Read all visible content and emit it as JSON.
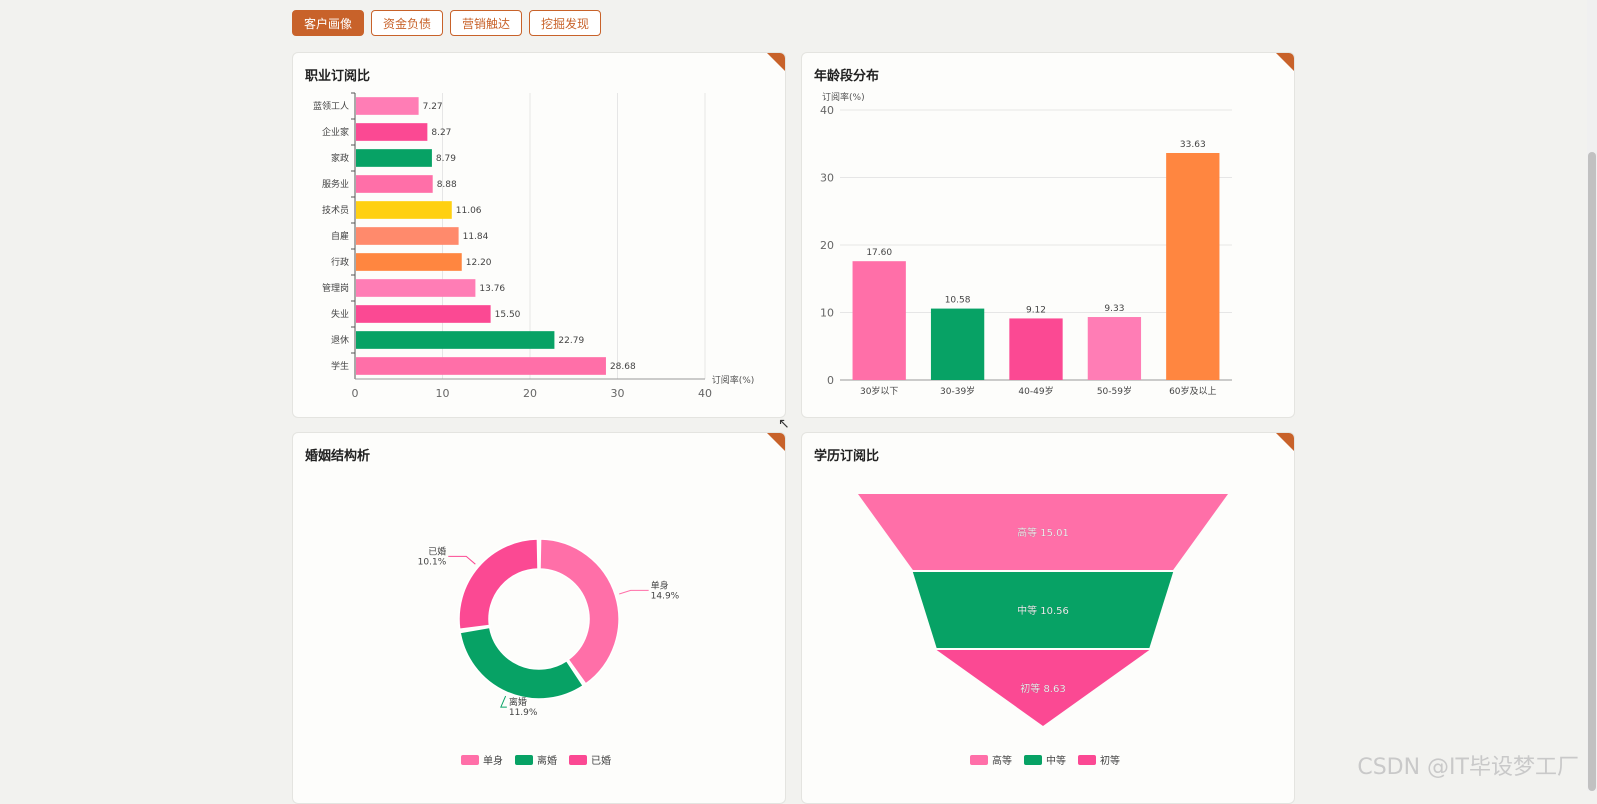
{
  "tabs": [
    "客户画像",
    "资金负债",
    "营销触达",
    "挖掘发现"
  ],
  "active_tab": 0,
  "colors": {
    "accent": "#c8622a",
    "pink": "#ff6fa8",
    "green": "#07a265",
    "magenta": "#fb4993",
    "yellow": "#ffd011",
    "salmon": "#ff8a6c",
    "orange": "#ff8640",
    "lightpink": "#ff7db5"
  },
  "cards": {
    "occupation_title": "职业订阅比",
    "age_title": "年龄段分布",
    "marriage_title": "婚姻结构析",
    "education_title": "学历订阅比"
  },
  "watermark": "CSDN @IT毕设梦工厂",
  "chart_data": [
    {
      "id": "occupation",
      "type": "bar",
      "orientation": "horizontal",
      "title": "职业订阅比",
      "categories": [
        "蓝领工人",
        "企业家",
        "家政",
        "服务业",
        "技术员",
        "自雇",
        "行政",
        "管理岗",
        "失业",
        "退休",
        "学生"
      ],
      "values": [
        7.27,
        8.27,
        8.79,
        8.88,
        11.06,
        11.84,
        12.2,
        13.76,
        15.5,
        22.79,
        28.68
      ],
      "value_labels": [
        "7.27",
        "8.27",
        "8.79",
        "8.88",
        "11.06",
        "11.84",
        "12.20",
        "13.76",
        "15.50",
        "22.79",
        "28.68"
      ],
      "bar_colors": [
        "#ff7db5",
        "#fb4993",
        "#07a265",
        "#ff6fa8",
        "#ffd011",
        "#ff8a6c",
        "#ff8640",
        "#ff7db5",
        "#fb4993",
        "#07a265",
        "#ff6fa8"
      ],
      "xlabel": "订阅率(%)",
      "xlim": [
        0,
        40
      ],
      "xticks": [
        "0",
        "10",
        "20",
        "30",
        "40"
      ],
      "grid": true
    },
    {
      "id": "age",
      "type": "bar",
      "title": "年龄段分布",
      "categories": [
        "30岁以下",
        "30-39岁",
        "40-49岁",
        "50-59岁",
        "60岁及以上"
      ],
      "values": [
        17.6,
        10.58,
        9.12,
        9.33,
        33.63
      ],
      "value_labels": [
        "17.60",
        "10.58",
        "9.12",
        "9.33",
        "33.63"
      ],
      "bar_colors": [
        "#ff6fa8",
        "#07a265",
        "#fb4993",
        "#ff7db5",
        "#ff8640"
      ],
      "ylabel": "订阅率(%)",
      "ylim": [
        0,
        40
      ],
      "yticks": [
        "0",
        "10",
        "20",
        "30",
        "40"
      ],
      "grid": true
    },
    {
      "id": "marriage",
      "type": "pie",
      "donut": true,
      "title": "婚姻结构析",
      "labels": [
        "单身",
        "离婚",
        "已婚"
      ],
      "values": [
        14.9,
        11.9,
        10.1
      ],
      "value_labels": [
        "14.9%",
        "11.9%",
        "10.1%"
      ],
      "colors": [
        "#ff6fa8",
        "#07a265",
        "#fb4993"
      ],
      "legend": "bottom"
    },
    {
      "id": "education",
      "type": "funnel",
      "title": "学历订阅比",
      "labels": [
        "高等",
        "中等",
        "初等"
      ],
      "values": [
        15.01,
        10.56,
        8.63
      ],
      "value_labels": [
        "高等 15.01",
        "中等 10.56",
        "初等 8.63"
      ],
      "colors": [
        "#ff6fa8",
        "#07a265",
        "#fb4993"
      ],
      "legend": "bottom"
    }
  ]
}
